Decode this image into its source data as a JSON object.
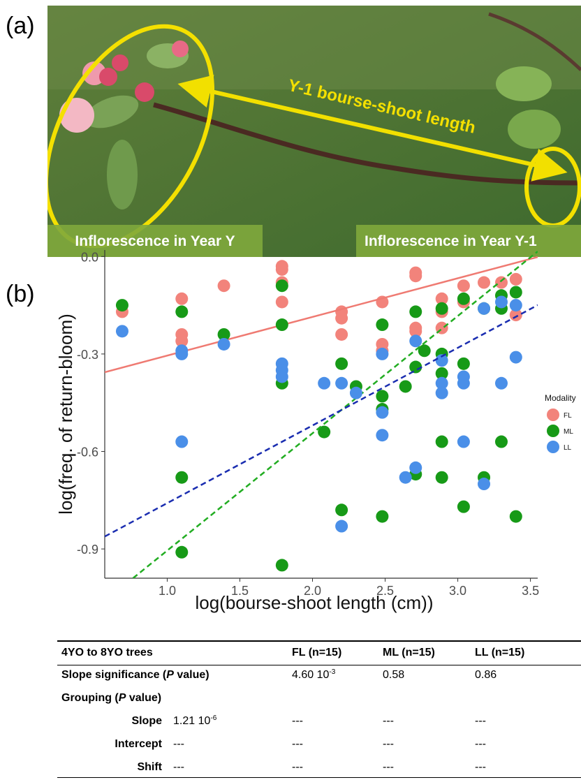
{
  "panel_labels": [
    "(a)",
    "(b)"
  ],
  "photo": {
    "arrow_label": "Y-1 bourse-shoot length",
    "label_left": "Inflorescence in Year Y",
    "label_right": "Inflorescence in Year Y-1"
  },
  "chart_data": {
    "type": "scatter",
    "x_label": "log(bourse-shoot length (cm))",
    "y_label": "log(freq. of return-bloom)",
    "xlim": [
      0.57,
      3.55
    ],
    "ylim": [
      -0.99,
      0.02
    ],
    "xticks": [
      {
        "value": 1,
        "label": "1.0"
      },
      1.5,
      {
        "value": 2,
        "label": "2.0"
      },
      2.5,
      {
        "value": 3,
        "label": "3.0"
      },
      3.5
    ],
    "yticks": [
      -0.9,
      -0.6,
      -0.3,
      {
        "value": 0,
        "label": "0.0"
      }
    ],
    "grid": false,
    "legend": "right",
    "legend_title": "Modality",
    "series": [
      {
        "name": "FL",
        "color": "#f2837b",
        "fit_color": "#ef7a72",
        "fit_dashed": false,
        "fit_slope": 0.119,
        "fit_intercept": -0.424,
        "x": [
          0.69,
          1.1,
          1.1,
          1.1,
          1.39,
          1.79,
          1.79,
          1.79,
          1.79,
          2.2,
          2.2,
          2.2,
          2.48,
          2.48,
          2.48,
          2.71,
          2.71,
          2.71,
          2.71,
          2.89,
          2.89,
          2.89,
          3.04,
          3.04,
          3.18,
          3.3,
          3.4,
          3.4
        ],
        "values": [
          -0.17,
          -0.13,
          -0.24,
          -0.26,
          -0.09,
          -0.03,
          -0.04,
          -0.08,
          -0.14,
          -0.17,
          -0.19,
          -0.24,
          -0.14,
          -0.27,
          -0.29,
          -0.05,
          -0.06,
          -0.22,
          -0.23,
          -0.13,
          -0.17,
          -0.22,
          -0.09,
          -0.14,
          -0.08,
          -0.08,
          -0.07,
          -0.18
        ]
      },
      {
        "name": "ML",
        "color": "#179a17",
        "fit_color": "#22ad22",
        "fit_dashed": true,
        "fit_slope": 0.361,
        "fit_intercept": -1.266,
        "x": [
          0.69,
          1.1,
          1.1,
          1.1,
          1.39,
          1.79,
          1.79,
          1.79,
          1.79,
          2.08,
          2.2,
          2.2,
          2.3,
          2.48,
          2.48,
          2.48,
          2.48,
          2.64,
          2.71,
          2.71,
          2.71,
          2.77,
          2.89,
          2.89,
          2.89,
          2.89,
          2.89,
          3.04,
          3.04,
          3.04,
          3.18,
          3.18,
          3.3,
          3.3,
          3.3,
          3.4,
          3.4
        ],
        "values": [
          -0.15,
          -0.17,
          -0.68,
          -0.91,
          -0.24,
          -0.09,
          -0.21,
          -0.39,
          -0.95,
          -0.54,
          -0.33,
          -0.78,
          -0.4,
          -0.21,
          -0.43,
          -0.47,
          -0.8,
          -0.4,
          -0.17,
          -0.34,
          -0.67,
          -0.29,
          -0.16,
          -0.3,
          -0.36,
          -0.57,
          -0.68,
          -0.13,
          -0.33,
          -0.77,
          -0.16,
          -0.68,
          -0.12,
          -0.16,
          -0.57,
          -0.11,
          -0.8
        ]
      },
      {
        "name": "LL",
        "color": "#4a8fe8",
        "fit_color": "#1a2db0",
        "fit_dashed": true,
        "fit_slope": 0.239,
        "fit_intercept": -0.998,
        "x": [
          0.69,
          1.1,
          1.1,
          1.1,
          1.39,
          1.79,
          1.79,
          1.79,
          2.08,
          2.2,
          2.2,
          2.3,
          2.48,
          2.48,
          2.48,
          2.64,
          2.71,
          2.71,
          2.89,
          2.89,
          2.89,
          3.04,
          3.04,
          3.04,
          3.18,
          3.18,
          3.3,
          3.3,
          3.4,
          3.4
        ],
        "values": [
          -0.23,
          -0.29,
          -0.3,
          -0.57,
          -0.27,
          -0.33,
          -0.35,
          -0.37,
          -0.39,
          -0.39,
          -0.83,
          -0.42,
          -0.3,
          -0.48,
          -0.55,
          -0.68,
          -0.26,
          -0.65,
          -0.32,
          -0.39,
          -0.42,
          -0.37,
          -0.39,
          -0.57,
          -0.16,
          -0.7,
          -0.14,
          -0.39,
          -0.15,
          -0.31
        ]
      }
    ]
  },
  "table": {
    "header": [
      "4YO to 8YO trees",
      "FL (n=15)",
      "ML (n=15)",
      "LL (n=15)"
    ],
    "rows": [
      {
        "label": {
          "pre": "Slope significance (",
          "italic": "P",
          "post": " value)"
        },
        "cells": [
          {
            "base": "4.60 10",
            "sup": "-3"
          },
          "0.58",
          "0.86"
        ]
      },
      {
        "label": {
          "pre": "Grouping (",
          "italic": "P",
          "post": " value)"
        }
      },
      {
        "label": "Slope",
        "cells": [
          {
            "base": "1.21 10",
            "sup": "-6"
          },
          "---",
          "---",
          "---"
        ]
      },
      {
        "label": "Intercept",
        "cells": [
          "---",
          "---",
          "---",
          "---"
        ]
      },
      {
        "label": "Shift",
        "cells": [
          "---",
          "---",
          "---",
          "---"
        ]
      }
    ]
  }
}
